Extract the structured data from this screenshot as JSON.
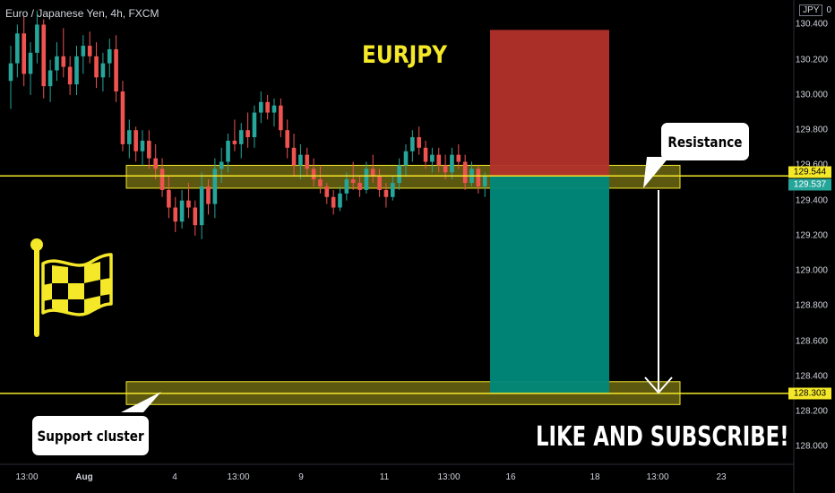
{
  "header": {
    "symbol_info": "Euro / Japanese Yen, 4h, FXCM"
  },
  "currency": {
    "unit": "JPY",
    "value": "0"
  },
  "title": "EURJPY",
  "callouts": {
    "resistance": "Resistance",
    "support": "Support cluster"
  },
  "cta": "LIKE AND SUBSCRIBE!",
  "colors": {
    "bull": "#26a69a",
    "bear": "#ef5350",
    "accent": "#f4e829",
    "stop": "#b2322a",
    "target": "#00897b"
  },
  "chart_data": {
    "type": "candlestick",
    "y_axis": {
      "range": [
        127.9,
        130.54
      ],
      "ticks": [
        "130.400",
        "130.200",
        "130.000",
        "129.800",
        "129.600",
        "129.400",
        "129.200",
        "129.000",
        "128.800",
        "128.600",
        "128.400",
        "128.200",
        "128.000"
      ]
    },
    "x_axis": {
      "ticks": [
        {
          "label": "13:00",
          "bold": false
        },
        {
          "label": "Aug",
          "bold": true
        },
        {
          "label": "4",
          "bold": false
        },
        {
          "label": "13:00",
          "bold": false
        },
        {
          "label": "9",
          "bold": false
        },
        {
          "label": "11",
          "bold": false
        },
        {
          "label": "13:00",
          "bold": false
        },
        {
          "label": "16",
          "bold": false
        },
        {
          "label": "18",
          "bold": false
        },
        {
          "label": "13:00",
          "bold": false
        },
        {
          "label": "23",
          "bold": false
        }
      ]
    },
    "price_labels": [
      {
        "value": "129.544",
        "price": 129.544,
        "style": "yellow"
      },
      {
        "value": "129.537",
        "price": 129.537,
        "style": "green"
      },
      {
        "value": "128.303",
        "price": 128.303,
        "style": "yellow"
      }
    ],
    "horizontal_lines": [
      129.54,
      128.303
    ],
    "zones": [
      {
        "name": "resistance-zone",
        "from": 129.47,
        "to": 129.6
      },
      {
        "name": "support-zone",
        "from": 128.24,
        "to": 128.37
      }
    ],
    "position": {
      "entry": 129.54,
      "stop": 130.37,
      "target": 128.303
    },
    "candles": [
      [
        130.08,
        130.28,
        129.92,
        130.18
      ],
      [
        130.18,
        130.4,
        130.1,
        130.35
      ],
      [
        130.35,
        130.45,
        130.05,
        130.12
      ],
      [
        130.12,
        130.3,
        130.0,
        130.24
      ],
      [
        130.24,
        130.48,
        130.18,
        130.4
      ],
      [
        130.4,
        130.43,
        129.98,
        130.05
      ],
      [
        130.05,
        130.2,
        129.96,
        130.14
      ],
      [
        130.14,
        130.3,
        130.08,
        130.22
      ],
      [
        130.22,
        130.38,
        130.1,
        130.16
      ],
      [
        130.16,
        130.22,
        130.0,
        130.06
      ],
      [
        130.06,
        130.28,
        130.0,
        130.22
      ],
      [
        130.22,
        130.34,
        130.12,
        130.28
      ],
      [
        130.28,
        130.36,
        130.18,
        130.22
      ],
      [
        130.22,
        130.3,
        130.04,
        130.1
      ],
      [
        130.1,
        130.24,
        130.02,
        130.18
      ],
      [
        130.18,
        130.32,
        130.1,
        130.26
      ],
      [
        130.26,
        130.34,
        129.96,
        130.02
      ],
      [
        130.02,
        130.08,
        129.68,
        129.72
      ],
      [
        129.72,
        129.86,
        129.64,
        129.8
      ],
      [
        129.8,
        129.82,
        129.62,
        129.68
      ],
      [
        129.68,
        129.8,
        129.6,
        129.74
      ],
      [
        129.74,
        129.8,
        129.58,
        129.64
      ],
      [
        129.64,
        129.72,
        129.52,
        129.58
      ],
      [
        129.58,
        129.64,
        129.42,
        129.46
      ],
      [
        129.46,
        129.54,
        129.3,
        129.36
      ],
      [
        129.36,
        129.42,
        129.22,
        129.28
      ],
      [
        129.28,
        129.46,
        129.24,
        129.4
      ],
      [
        129.4,
        129.5,
        129.3,
        129.36
      ],
      [
        129.36,
        129.4,
        129.2,
        129.26
      ],
      [
        129.26,
        129.56,
        129.18,
        129.48
      ],
      [
        129.48,
        129.52,
        129.32,
        129.38
      ],
      [
        129.38,
        129.64,
        129.3,
        129.58
      ],
      [
        129.58,
        129.7,
        129.5,
        129.62
      ],
      [
        129.62,
        129.78,
        129.56,
        129.74
      ],
      [
        129.74,
        129.86,
        129.68,
        129.72
      ],
      [
        129.72,
        129.84,
        129.64,
        129.8
      ],
      [
        129.8,
        129.9,
        129.7,
        129.76
      ],
      [
        129.76,
        129.94,
        129.7,
        129.9
      ],
      [
        129.9,
        130.02,
        129.84,
        129.96
      ],
      [
        129.96,
        130.0,
        129.86,
        129.9
      ],
      [
        129.9,
        129.98,
        129.82,
        129.94
      ],
      [
        129.94,
        129.98,
        129.76,
        129.8
      ],
      [
        129.8,
        129.86,
        129.64,
        129.7
      ],
      [
        129.7,
        129.78,
        129.54,
        129.6
      ],
      [
        129.6,
        129.72,
        129.52,
        129.66
      ],
      [
        129.66,
        129.7,
        129.54,
        129.58
      ],
      [
        129.58,
        129.64,
        129.48,
        129.52
      ],
      [
        129.52,
        129.6,
        129.44,
        129.48
      ],
      [
        129.48,
        129.5,
        129.38,
        129.42
      ],
      [
        129.42,
        129.46,
        129.32,
        129.36
      ],
      [
        129.36,
        129.48,
        129.34,
        129.44
      ],
      [
        129.44,
        129.56,
        129.4,
        129.52
      ],
      [
        129.52,
        129.62,
        129.46,
        129.5
      ],
      [
        129.5,
        129.54,
        129.42,
        129.46
      ],
      [
        129.46,
        129.62,
        129.44,
        129.58
      ],
      [
        129.58,
        129.66,
        129.5,
        129.54
      ],
      [
        129.54,
        129.58,
        129.42,
        129.46
      ],
      [
        129.46,
        129.5,
        129.36,
        129.42
      ],
      [
        129.42,
        129.54,
        129.4,
        129.5
      ],
      [
        129.5,
        129.64,
        129.46,
        129.6
      ],
      [
        129.6,
        129.72,
        129.54,
        129.68
      ],
      [
        129.68,
        129.8,
        129.62,
        129.76
      ],
      [
        129.76,
        129.82,
        129.66,
        129.7
      ],
      [
        129.7,
        129.74,
        129.58,
        129.62
      ],
      [
        129.62,
        129.7,
        129.56,
        129.66
      ],
      [
        129.66,
        129.7,
        129.56,
        129.6
      ],
      [
        129.6,
        129.66,
        129.52,
        129.56
      ],
      [
        129.56,
        129.7,
        129.52,
        129.66
      ],
      [
        129.66,
        129.72,
        129.58,
        129.62
      ],
      [
        129.62,
        129.66,
        129.46,
        129.5
      ],
      [
        129.5,
        129.62,
        129.48,
        129.58
      ],
      [
        129.58,
        129.6,
        129.44,
        129.48
      ],
      [
        129.48,
        129.56,
        129.42,
        129.54
      ]
    ]
  }
}
